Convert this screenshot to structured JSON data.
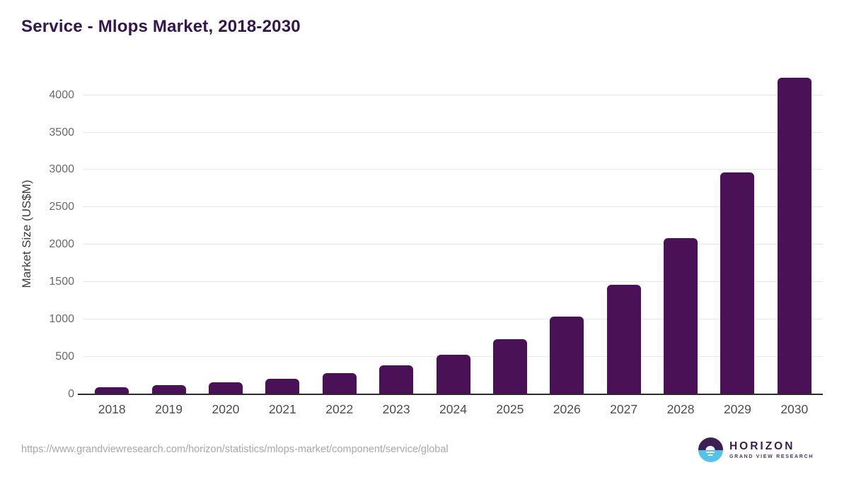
{
  "chart_data": {
    "type": "bar",
    "title": "Service - Mlops Market, 2018-2030",
    "xlabel": "",
    "ylabel": "Market Size (US$M)",
    "categories": [
      "2018",
      "2019",
      "2020",
      "2021",
      "2022",
      "2023",
      "2024",
      "2025",
      "2026",
      "2027",
      "2028",
      "2029",
      "2030"
    ],
    "values": [
      85,
      113,
      151,
      199,
      274,
      379,
      521,
      723,
      1030,
      1455,
      2075,
      2960,
      4220
    ],
    "yticks": [
      0,
      500,
      1000,
      1500,
      2000,
      2500,
      3000,
      3500,
      4000
    ],
    "ylim": [
      0,
      4280
    ],
    "grid": "horizontal",
    "legend": "none",
    "bar_color": "#4a1157"
  },
  "colors": {
    "title": "#35154d",
    "bar": "#4a1157",
    "gridline": "#e8e8e8",
    "axis_line": "#2b2b2b",
    "tick_label": "#4d4d4d",
    "source_text": "#a8a8a8",
    "logo_purple": "#3b2051",
    "logo_blue": "#54c3ea"
  },
  "footer": {
    "source_url": "https://www.grandviewresearch.com/horizon/statistics/mlops-market/component/service/global",
    "logo": {
      "title": "HORIZON",
      "subtitle": "GRAND VIEW RESEARCH"
    }
  }
}
